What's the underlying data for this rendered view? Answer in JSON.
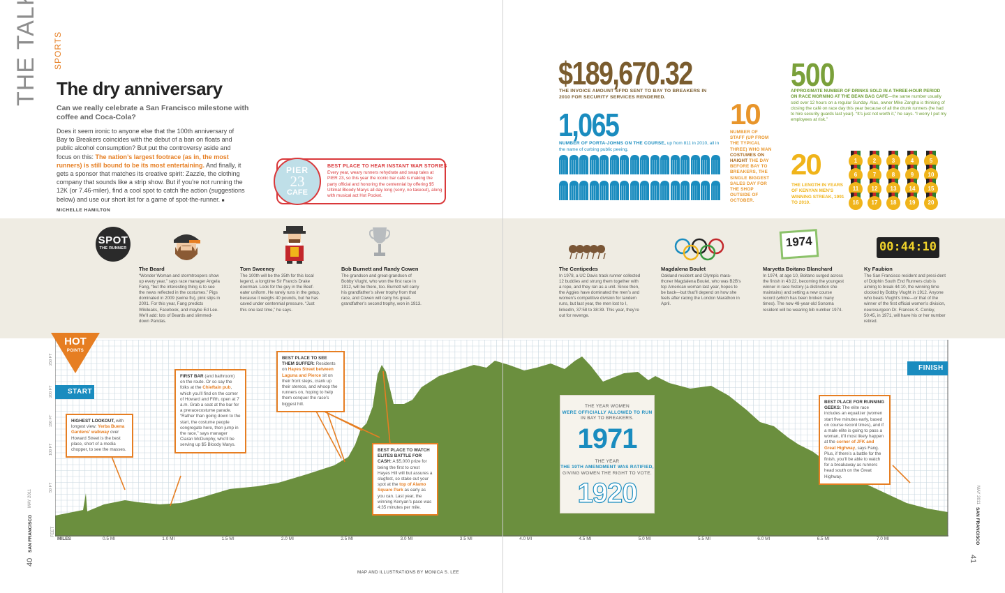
{
  "header": {
    "section": "THE TALK",
    "category": "SPORTS",
    "title": "The dry anniversary",
    "subtitle": "Can we really celebrate a San Francisco milestone with coffee and Coca-Cola?",
    "intro_1": "Does it seem ironic to anyone else that the 100th anniversary of Bay to Breakers coincides with the debut of a ban on floats and public alcohol consumption? But put the controversy aside and focus on this: ",
    "intro_hl": "The nation’s largest footrace (as in, the most runners) is still bound to be its most entertaining.",
    "intro_2": " And finally, it gets a sponsor that matches its creative spirit: Zazzle, the clothing company that sounds like a strip show. But if you’re not running the 12K (or 7.46-miler), find a cool spot to catch the action (suggestions below) and use our short list for a game of spot-the-runner.",
    "byline": "MICHELLE HAMILTON"
  },
  "pier": {
    "badge_top": "PIER",
    "badge_num": "23",
    "badge_bottom": "CAFE",
    "heading": "BEST PLACE TO HEAR INSTANT WAR STORIES",
    "text": "Every year, weary runners rehydrate and swap tales at PIER 23, so this year the iconic bar café is making the party official and honoring the centennial by offering $5 Ultimat Bloody Marys all day long (sorry, no takeout), along with musical act Hot Pocket."
  },
  "stats": {
    "money": "$189,670.32",
    "money_caption": "THE INVOICE AMOUNT SFPD SENT TO BAY TO BREAKERS IN 2010 FOR SECURITY SERVICES RENDERED.",
    "porta": "1,065",
    "porta_caption_bold": "NUMBER OF PORTA-JOHNS ON THE COURSE,",
    "porta_caption": " up from 811 in 2010, all in the name of curbing public peeing.",
    "staff": "10",
    "staff_caption_a": "NUMBER OF STAFF (UP FROM THE TYPICAL THREE) WHO MAN",
    "staff_caption_b": " COSTUMES ON HAIGHT ",
    "staff_caption_c": "THE DAY BEFORE BAY TO BREAKERS, THE SINGLE BIGGEST SALES DAY FOR THE SHOP OUTSIDE OF OCTOBER.",
    "drinks": "500",
    "drinks_caption_bold": "APPROXIMATE NUMBER OF DRINKS SOLD IN A THREE-HOUR PERIOD ON RACE MORNING AT THE BEAN BAG CAFE",
    "drinks_caption": "—the same number usually sold over 12 hours on a regular Sunday. Alas, owner Mike Zangha is thinking of closing the café on race day this year because of all the drunk runners (he had to hire security guards last year). “It’s just not worth it,” he says. “I worry I put my employees at risk.”",
    "streak": "20",
    "streak_caption": "THE LENGTH IN YEARS OF KENYAN MEN’S WINNING STREAK, 1991 TO 2010.",
    "medals": [
      "1",
      "2",
      "3",
      "4",
      "5",
      "6",
      "7",
      "8",
      "9",
      "10",
      "11",
      "12",
      "13",
      "14",
      "15",
      "16",
      "17",
      "18",
      "19",
      "20"
    ]
  },
  "spot": {
    "badge_top": "SPOT",
    "badge_bottom": "THE RUNNER",
    "runners": [
      {
        "name": "The Beard",
        "text": "“Wonder Woman and stormtroopers show up every year,” says race manager Angela Fang, “but the interesting thing is to see the news reflected in the costumes.” Pigs dominated in 2009 (swine flu), pink slips in 2001. For this year, Fang predicts Wikileaks, Facebook, and maybe Ed Lee. We’ll add: lots of Beards and slimmed-down Pandas."
      },
      {
        "name": "Tom Sweeney",
        "text": "The 100th will be the 35th for this local legend, a longtime Sir Francis Drake doorman. Look for the guy in the Beef-eater uniform. He rarely runs in the getup, because it weighs 40 pounds, but he has caved under centennial pressure. “Just this one last time,” he says."
      },
      {
        "name": "Bob Burnett and Randy Cowen",
        "text": "The grandson and great-grandson of Bobby Vlught, who won the first race in 1912, will be there, too. Burnett will carry his grandfather’s silver trophy from that race, and Cowen will carry his great-grandfather’s second trophy, won in 1913."
      },
      {
        "name": "The Centipedes",
        "text": "In 1978, a UC Davis track runner collected 12 buddies and strung them together with a rope, and they ran as a unit. Since then, the Aggies have dominated the men’s and women’s competitive division for tandem runs, but last year, the men lost to I, linkedIn, 37:58 to 38:39. This year, they’re out for revenge."
      },
      {
        "name": "Magdalena Boulet",
        "text": "Oakland resident and Olympic mara-thoner Magdalena Boulet, who was B2B’s top American woman last year, hopes to be back—but that’ll depend on how she feels after racing the London Marathon in April."
      },
      {
        "name": "Maryetta Boitano Blanchard",
        "text": "In 1974, at age 10, Boitano surged across the finish in 43:22, becoming the youngest winner in race history (a distinction she maintains) and setting a new course record (which has been broken many times). The now 48-year-old Sonoma resident will be wearing bib number 1974."
      },
      {
        "name": "Ky Faubion",
        "text": "The San Francisco resident and presi-dent of Dolphin South End Runners club is aiming to break 44:10, the winning time clocked by Bobby Vlught in 1912. Anyone who beats Vlught’s time—or that of the winner of the first official women’s division, neurosurgeon Dr. Frances K. Conley, 50:45, in 1971, will have his or her number retired."
      }
    ],
    "bib": "1974",
    "clock": "00:44:10"
  },
  "map": {
    "hot_top": "HOT",
    "hot_bottom": "POINTS",
    "start": "START",
    "finish": "FINISH",
    "feet_label": "FEET",
    "miles_label": "MILES",
    "y_ticks": [
      "50 FT",
      "100 FT",
      "150 FT",
      "200 FT",
      "250 FT"
    ],
    "x_ticks": [
      "0.5 MI",
      "1.0 MI",
      "1.5 MI",
      "2.0 MI",
      "2.5 MI",
      "3.0 MI",
      "3.5 MI",
      "4.0 MI",
      "4.5 MI",
      "5.0 MI",
      "5.5 MI",
      "6.0 MI",
      "6.5 MI",
      "7.0 MI"
    ],
    "callouts": {
      "lookout_b": "HIGHEST LOOKOUT,",
      "lookout_1": " with longest view: ",
      "lookout_hl": "Yerba Buena Gardens’ walkway",
      "lookout_2": " over Howard Street is the best place, short of a media chopper, to see the masses.",
      "bar_b": "FIRST BAR",
      "bar_1": " (and bathroom) on the route. Or so say the folks at the ",
      "bar_hl": "Chieftain pub",
      "bar_2": ", which you’ll find on the corner of Howard and Fifth, open at 7 a.m. Grab a seat at the bar for a preracecostume parade. “Rather than going down to the start, the costume people congregate here, then jump in the race,” says manager Ciaran McDunphy, who’ll be serving up $5 Bloody Marys.",
      "suffer_b": "BEST PLACE TO SEE THEM SUFFER:",
      "suffer_1": " Residents on ",
      "suffer_hl": "Hayes Street between Laguna and Pierce",
      "suffer_2": " sit on their front steps, crank up their stereos, and whoop the runners on, hoping to help them conquer the race’s biggest hill.",
      "elite_b": "BEST PLACE TO WATCH ELITES BATTLE FOR CASH:",
      "elite_1": " A $5,000 prize for being the first to crest Hayes Hill will but assures a slugfest, so stake out your spot at the ",
      "elite_hl": "top of Alamo Square Park",
      "elite_2": " as early as you can. Last year, the winning Kenyan’s pace was 4:35 minutes per mile.",
      "geeks_b": "BEST PLACE FOR RUNNING GEEKS:",
      "geeks_1": " The elite race includes an equalizer (women start five minutes early, based on course record times), and if a male elite is going to pass a woman, it’ll most likely happen at the ",
      "geeks_hl": "corner of JFK and Great Highway",
      "geeks_2": ", says Fang. Plus, if there’s a battle for the finish, you’ll be able to watch for a breakaway as runners head south on the Great Highway."
    },
    "year_box": {
      "l1a": "THE YEAR WOMEN",
      "l1b": "WERE OFFICIALLY ALLOWED TO RUN",
      "l1c": "IN BAY TO BREAKERS.",
      "y1": "1971",
      "l2a": "THE YEAR",
      "l2b": "THE 19TH AMENDMENT WAS RATIFIED,",
      "l2c": "GIVING WOMEN THE RIGHT TO VOTE.",
      "y2": "1920"
    }
  },
  "footer": {
    "page_left": "40",
    "page_right": "41",
    "mag": "SAN FRANCISCO",
    "date": "MAY 2011",
    "credit": "MAP AND ILLUSTRATIONS BY MONICA S. LEE"
  },
  "colors": {
    "terrain": "#6b8f3e",
    "accent": "#e67e22",
    "blue": "#1a8cbf",
    "band": "#efece3"
  }
}
